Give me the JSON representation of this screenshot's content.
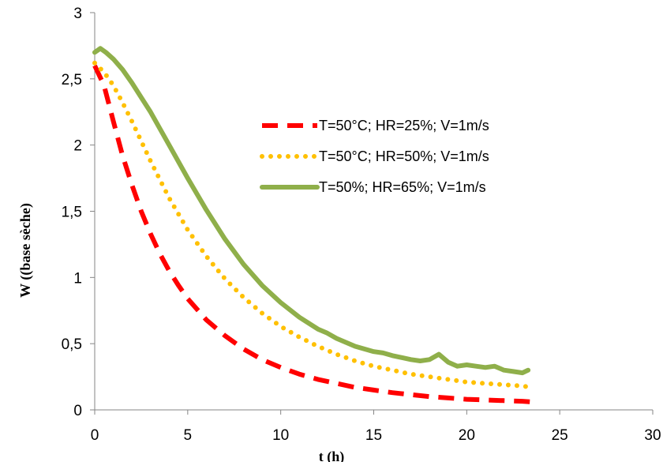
{
  "chart_data": {
    "type": "line",
    "xlabel": "t (h)",
    "ylabel": "W ((base sèche)",
    "xlim": [
      0,
      30
    ],
    "ylim": [
      0,
      3
    ],
    "xticks": [
      0,
      5,
      10,
      15,
      20,
      25,
      30
    ],
    "yticks": [
      0,
      0.5,
      1,
      1.5,
      2,
      2.5,
      3
    ],
    "xtick_labels": [
      "0",
      "5",
      "10",
      "15",
      "20",
      "25",
      "30"
    ],
    "ytick_labels": [
      "0",
      "0,5",
      "1",
      "1,5",
      "2",
      "2,5",
      "3"
    ],
    "grid": false,
    "legend_position": "right-center",
    "series": [
      {
        "name": "T=50°C; HR=25%; V=1m/s",
        "color": "#ff0000",
        "style": "dashed",
        "x": [
          0,
          0.5,
          1,
          1.5,
          2,
          2.5,
          3,
          3.5,
          4,
          4.5,
          5,
          6,
          7,
          8,
          9,
          10,
          11,
          12,
          13,
          14,
          15,
          16,
          17,
          18,
          19,
          20,
          21,
          22,
          23,
          23.5
        ],
        "y": [
          2.6,
          2.45,
          2.18,
          1.92,
          1.7,
          1.5,
          1.33,
          1.18,
          1.05,
          0.94,
          0.84,
          0.68,
          0.56,
          0.46,
          0.38,
          0.32,
          0.27,
          0.23,
          0.2,
          0.17,
          0.15,
          0.13,
          0.115,
          0.1,
          0.09,
          0.08,
          0.075,
          0.07,
          0.065,
          0.06
        ]
      },
      {
        "name": "T=50°C; HR=50%; V=1m/s",
        "color": "#ffc000",
        "style": "dotted",
        "x": [
          0,
          0.5,
          1,
          1.5,
          2,
          2.5,
          3,
          4,
          5,
          6,
          7,
          8,
          9,
          10,
          11,
          12,
          13,
          14,
          15,
          16,
          17,
          18,
          19,
          20,
          21,
          22,
          23,
          23.5
        ],
        "y": [
          2.62,
          2.55,
          2.45,
          2.32,
          2.18,
          2.03,
          1.88,
          1.6,
          1.36,
          1.16,
          0.99,
          0.85,
          0.73,
          0.63,
          0.55,
          0.48,
          0.42,
          0.37,
          0.33,
          0.3,
          0.27,
          0.25,
          0.23,
          0.21,
          0.2,
          0.19,
          0.18,
          0.17
        ]
      },
      {
        "name": "T=50%; HR=65%; V=1m/s",
        "color": "#8faf4a",
        "style": "solid",
        "x": [
          0,
          0.3,
          0.6,
          1,
          1.5,
          2,
          3,
          4,
          5,
          6,
          7,
          8,
          9,
          10,
          11,
          12,
          12.5,
          13,
          14,
          15,
          15.5,
          16,
          17,
          17.5,
          18,
          18.5,
          19,
          19.5,
          20,
          20.5,
          21,
          21.5,
          22,
          22.5,
          23,
          23.3
        ],
        "y": [
          2.7,
          2.73,
          2.7,
          2.65,
          2.57,
          2.47,
          2.25,
          2.0,
          1.75,
          1.51,
          1.29,
          1.1,
          0.94,
          0.81,
          0.7,
          0.61,
          0.58,
          0.54,
          0.48,
          0.44,
          0.43,
          0.41,
          0.38,
          0.37,
          0.38,
          0.42,
          0.36,
          0.33,
          0.34,
          0.33,
          0.32,
          0.33,
          0.3,
          0.29,
          0.28,
          0.3
        ]
      }
    ]
  }
}
